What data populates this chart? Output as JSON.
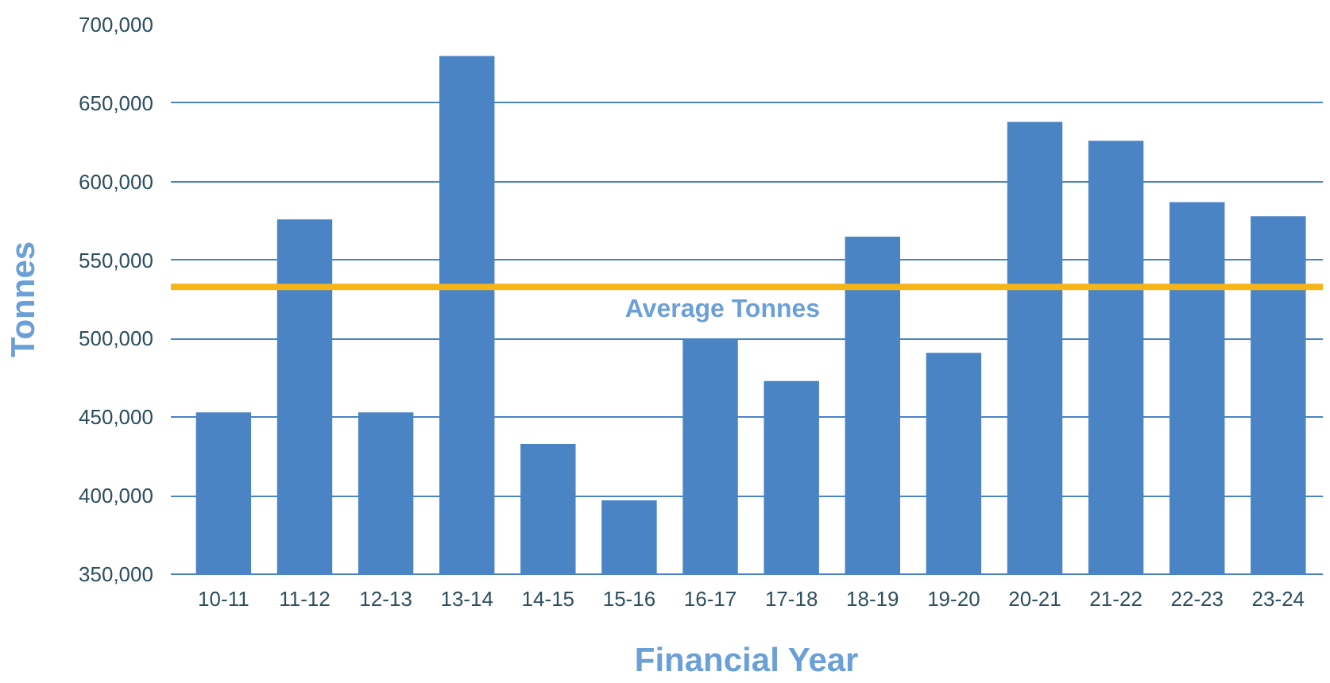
{
  "chart_data": {
    "type": "bar",
    "xlabel": "Financial Year",
    "ylabel": "Tonnes",
    "categories": [
      "10-11",
      "11-12",
      "12-13",
      "13-14",
      "14-15",
      "15-16",
      "16-17",
      "17-18",
      "18-19",
      "19-20",
      "20-21",
      "21-22",
      "22-23",
      "23-24"
    ],
    "values": [
      453000,
      576000,
      453000,
      680000,
      433000,
      397000,
      500000,
      473000,
      565000,
      491000,
      638000,
      626000,
      587000,
      578000
    ],
    "color": "#4a84c4",
    "ylim": [
      350000,
      700000
    ],
    "yticks": [
      {
        "value": 350000,
        "label": "350,000"
      },
      {
        "value": 400000,
        "label": "400,000"
      },
      {
        "value": 450000,
        "label": "450,000"
      },
      {
        "value": 500000,
        "label": "500,000"
      },
      {
        "value": 550000,
        "label": "550,000"
      },
      {
        "value": 600000,
        "label": "600,000"
      },
      {
        "value": 650000,
        "label": "650,000"
      },
      {
        "value": 700000,
        "label": "700,000"
      }
    ],
    "grid": "y",
    "ref_lines": [
      {
        "axis": "y",
        "value": 533000,
        "label": "Average Tonnes",
        "color": "#f6b516"
      }
    ]
  }
}
